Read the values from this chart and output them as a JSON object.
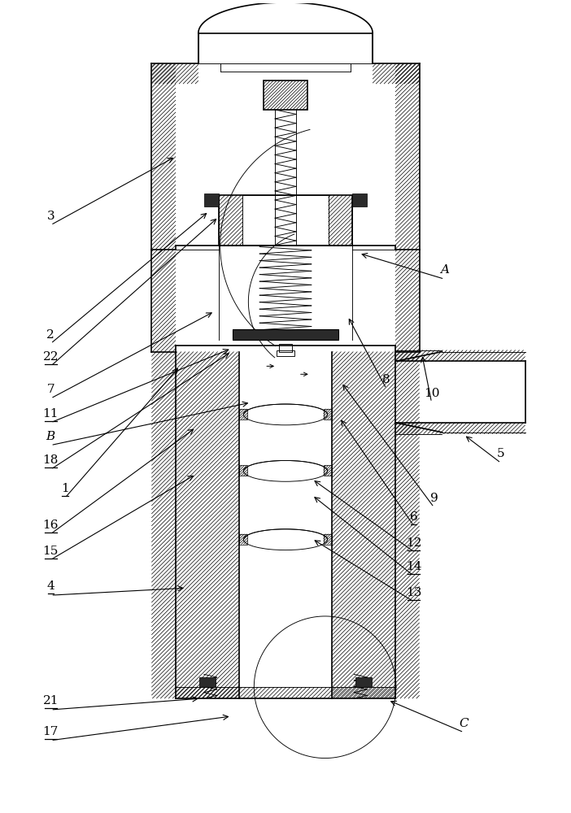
{
  "fig_width": 7.02,
  "fig_height": 10.0,
  "dpi": 100,
  "bg_color": "#ffffff",
  "line_color": "#000000",
  "label_defs": [
    [
      "3",
      60,
      725,
      215,
      810,
      false
    ],
    [
      "A",
      548,
      658,
      442,
      690,
      false
    ],
    [
      "2",
      60,
      578,
      256,
      742,
      false
    ],
    [
      "22",
      60,
      550,
      268,
      735,
      true
    ],
    [
      "8",
      476,
      522,
      428,
      612,
      false
    ],
    [
      "10",
      532,
      505,
      520,
      565,
      false
    ],
    [
      "7",
      60,
      510,
      263,
      618,
      false
    ],
    [
      "11",
      60,
      480,
      284,
      572,
      true
    ],
    [
      "B",
      60,
      452,
      308,
      505,
      false
    ],
    [
      "18",
      60,
      422,
      284,
      568,
      true
    ],
    [
      "5",
      618,
      430,
      572,
      465,
      false
    ],
    [
      "1",
      78,
      387,
      220,
      550,
      false
    ],
    [
      "9",
      535,
      375,
      420,
      530,
      false
    ],
    [
      "16",
      60,
      342,
      240,
      474,
      true
    ],
    [
      "6",
      510,
      352,
      418,
      486,
      false
    ],
    [
      "15",
      60,
      310,
      240,
      416,
      true
    ],
    [
      "12",
      510,
      320,
      384,
      410,
      false
    ],
    [
      "14",
      510,
      290,
      384,
      390,
      true
    ],
    [
      "4",
      60,
      266,
      228,
      275,
      true
    ],
    [
      "13",
      510,
      258,
      384,
      336,
      true
    ],
    [
      "21",
      60,
      124,
      246,
      138,
      true
    ],
    [
      "C",
      572,
      96,
      478,
      136,
      false
    ],
    [
      "17",
      60,
      86,
      284,
      116,
      true
    ]
  ]
}
